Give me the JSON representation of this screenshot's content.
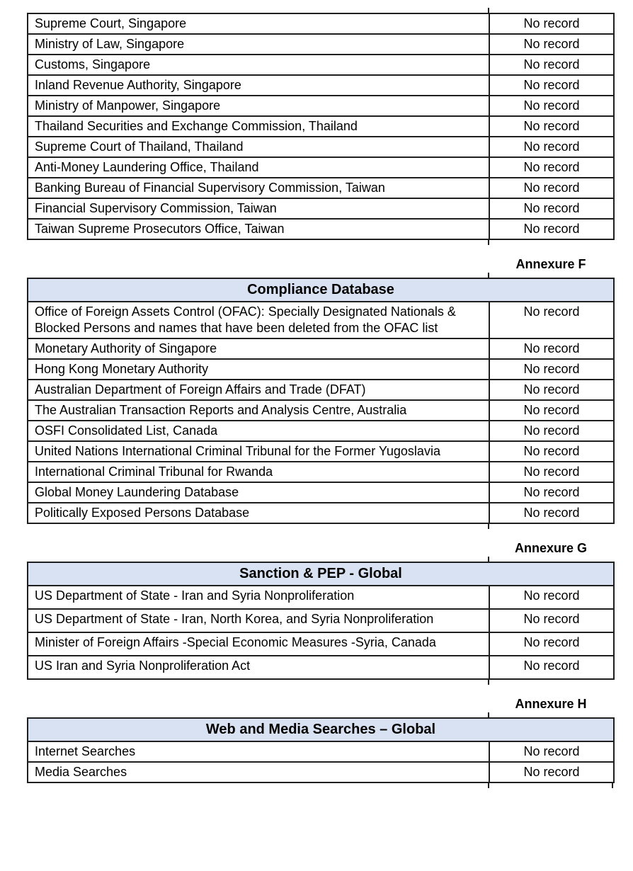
{
  "colors": {
    "table_header_bg": "#d9e2f3",
    "table_border": "#1f1f1f"
  },
  "tables": [
    {
      "name": "regulatory-sources-continued",
      "annexure": null,
      "header": null,
      "rows": [
        {
          "source": "Supreme Court, Singapore",
          "result": "No record"
        },
        {
          "source": "Ministry of Law, Singapore",
          "result": "No record"
        },
        {
          "source": "Customs, Singapore",
          "result": "No record"
        },
        {
          "source": "Inland Revenue Authority, Singapore",
          "result": "No record"
        },
        {
          "source": "Ministry of Manpower, Singapore",
          "result": "No record"
        },
        {
          "source": "Thailand Securities and Exchange Commission, Thailand",
          "result": "No record"
        },
        {
          "source": "Supreme Court of Thailand, Thailand",
          "result": "No record"
        },
        {
          "source": "Anti-Money Laundering Office, Thailand",
          "result": "No record"
        },
        {
          "source": "Banking Bureau of Financial Supervisory Commission, Taiwan",
          "result": "No record"
        },
        {
          "source": "Financial Supervisory Commission, Taiwan",
          "result": "No record"
        },
        {
          "source": "Taiwan Supreme Prosecutors Office, Taiwan",
          "result": "No record"
        }
      ]
    },
    {
      "name": "compliance-database",
      "annexure": "Annexure F",
      "header": "Compliance Database",
      "rows": [
        {
          "source": "Office of Foreign Assets Control (OFAC): Specially Designated Nationals & Blocked Persons and names that have been deleted from the OFAC list",
          "result": "No record"
        },
        {
          "source": "Monetary Authority of Singapore",
          "result": "No record"
        },
        {
          "source": "Hong Kong Monetary Authority",
          "result": "No record"
        },
        {
          "source": "Australian Department of Foreign Affairs and Trade (DFAT)",
          "result": "No record"
        },
        {
          "source": "The Australian Transaction Reports and Analysis Centre, Australia",
          "result": "No record"
        },
        {
          "source": "OSFI Consolidated List, Canada",
          "result": "No record"
        },
        {
          "source": "United Nations International Criminal Tribunal for the Former Yugoslavia",
          "result": "No record"
        },
        {
          "source": "International Criminal Tribunal for Rwanda",
          "result": "No record"
        },
        {
          "source": "Global Money Laundering Database",
          "result": "No record"
        },
        {
          "source": "Politically Exposed Persons Database",
          "result": "No record"
        }
      ]
    },
    {
      "name": "sanction-pep-global",
      "annexure": "Annexure G",
      "header": "Sanction & PEP - Global",
      "rows": [
        {
          "source": "US Department of State - Iran and Syria Nonproliferation",
          "result": "No record"
        },
        {
          "source": "US Department of State - Iran, North Korea, and Syria Nonproliferation",
          "result": "No record"
        },
        {
          "source": "Minister of Foreign Affairs -Special Economic Measures -Syria, Canada",
          "result": "No record"
        },
        {
          "source": "US Iran and Syria Nonproliferation Act",
          "result": "No record"
        }
      ]
    },
    {
      "name": "web-and-media-searches-global",
      "annexure": "Annexure H",
      "header": "Web and Media Searches – Global",
      "rows": [
        {
          "source": "Internet Searches",
          "result": "No record"
        },
        {
          "source": "Media Searches",
          "result": "No record"
        }
      ]
    }
  ]
}
